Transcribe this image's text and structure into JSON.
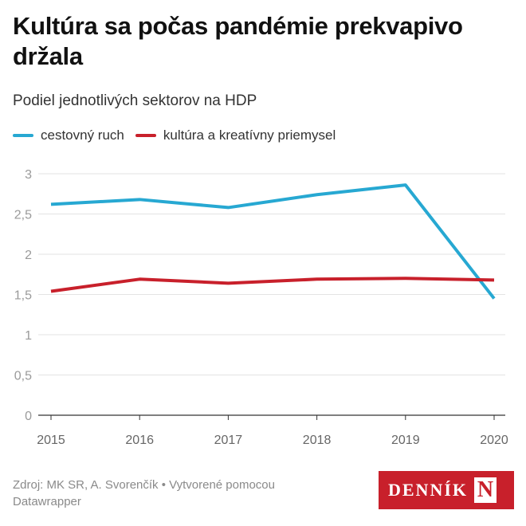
{
  "title": "Kultúra sa počas pandémie prekvapivo držala",
  "subtitle": "Podiel jednotlivých sektorov na HDP",
  "legend": [
    {
      "label": "cestovný ruch",
      "color": "#27a8d2"
    },
    {
      "label": "kultúra a kreatívny priemysel",
      "color": "#c8202b"
    }
  ],
  "chart_data": {
    "type": "line",
    "x": [
      "2015",
      "2016",
      "2017",
      "2018",
      "2019",
      "2020"
    ],
    "series": [
      {
        "name": "cestovný ruch",
        "color": "#27a8d2",
        "values": [
          2.62,
          2.68,
          2.58,
          2.74,
          2.86,
          1.45
        ]
      },
      {
        "name": "kultúra a kreatívny priemysel",
        "color": "#c8202b",
        "values": [
          1.54,
          1.69,
          1.64,
          1.69,
          1.7,
          1.68
        ]
      }
    ],
    "ylim": [
      0,
      3
    ],
    "yticks": [
      0,
      0.5,
      1,
      1.5,
      2,
      2.5,
      3
    ],
    "ytick_labels": [
      "0",
      "0,5",
      "1",
      "1,5",
      "2",
      "2,5",
      "3"
    ],
    "grid": true,
    "legend_position": "top-left"
  },
  "footer": {
    "source": "Zdroj: MK SR, A. Svorenčík • Vytvorené pomocou Datawrapper"
  },
  "logo": {
    "text": "DENNÍK",
    "mark": "N"
  }
}
